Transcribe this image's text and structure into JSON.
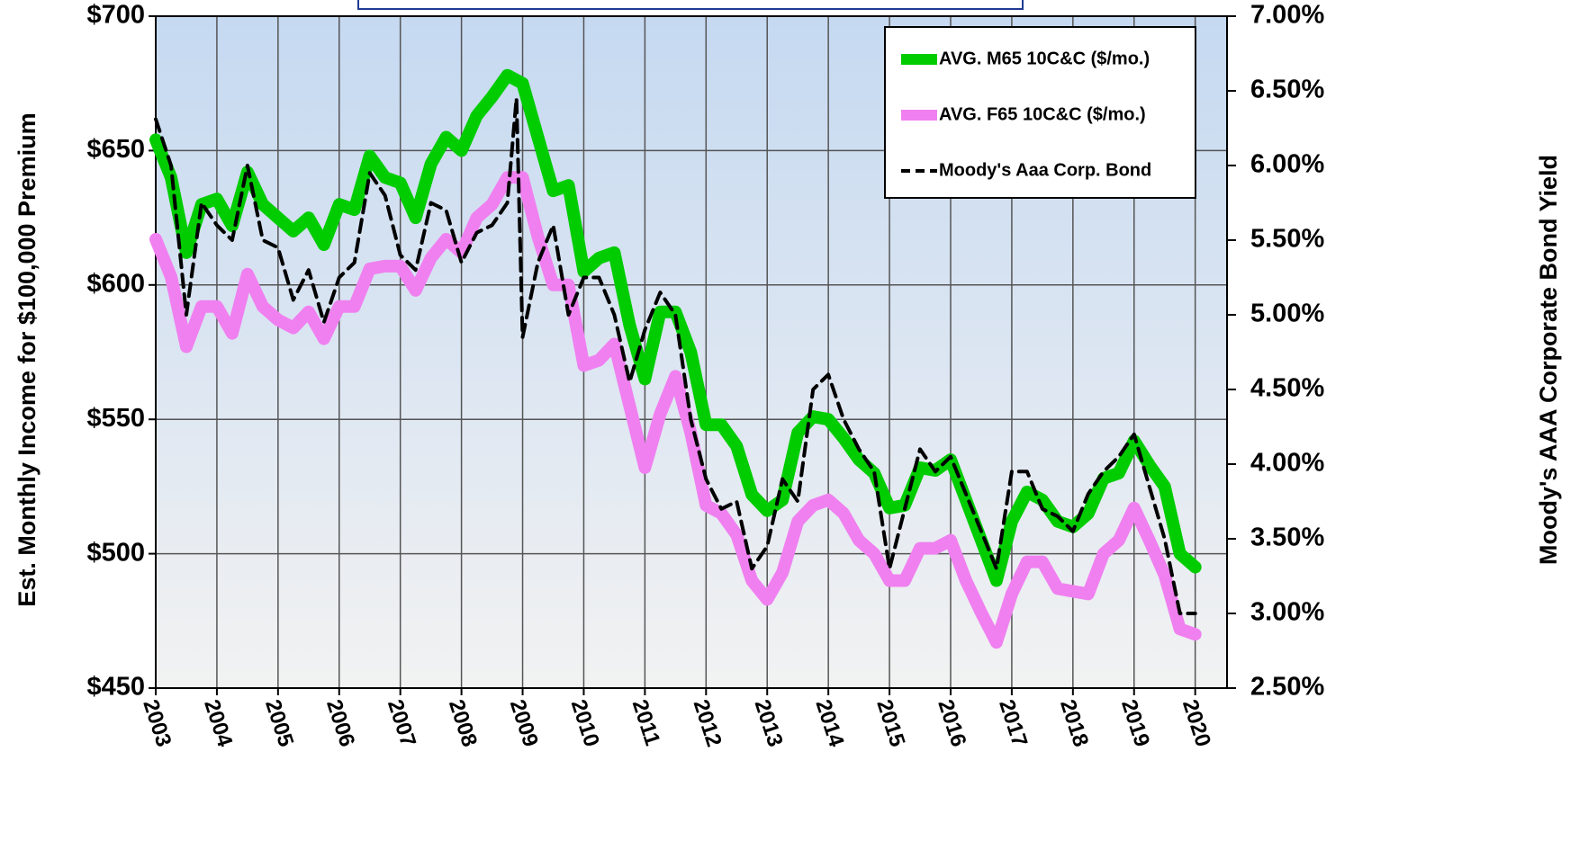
{
  "chart_data": {
    "type": "line",
    "y_label": "Est. Monthly Income for $100,000 Premium",
    "y2_label": "Moody's AAA Corporate Bond Yield",
    "xlim": [
      2003,
      2020.52
    ],
    "xticks": [
      2003,
      2004,
      2005,
      2006,
      2007,
      2008,
      2009,
      2010,
      2011,
      2012,
      2013,
      2014,
      2015,
      2016,
      2017,
      2018,
      2019,
      2020
    ],
    "ylim": [
      450,
      700
    ],
    "yticks": [
      {
        "value": 450,
        "label": "$450"
      },
      {
        "value": 500,
        "label": "$500"
      },
      {
        "value": 550,
        "label": "$550"
      },
      {
        "value": 600,
        "label": "$600"
      },
      {
        "value": 650,
        "label": "$650"
      },
      {
        "value": 700,
        "label": "$700"
      }
    ],
    "y2lim": [
      2.5,
      7.0
    ],
    "y2ticks": [
      {
        "value": 2.5,
        "label": "2.50%"
      },
      {
        "value": 3.0,
        "label": "3.00%"
      },
      {
        "value": 3.5,
        "label": "3.50%"
      },
      {
        "value": 4.0,
        "label": "4.00%"
      },
      {
        "value": 4.5,
        "label": "4.50%"
      },
      {
        "value": 5.0,
        "label": "5.00%"
      },
      {
        "value": 5.5,
        "label": "5.50%"
      },
      {
        "value": 6.0,
        "label": "6.00%"
      },
      {
        "value": 6.5,
        "label": "6.50%"
      },
      {
        "value": 7.0,
        "label": "7.00%"
      }
    ],
    "grid": true,
    "legend": "top-right",
    "series": [
      {
        "name": "AVG. M65 10C&C ($/mo.)",
        "color": "#00cc00",
        "line_style": "solid",
        "x": [
          2003,
          2003.25,
          2003.5,
          2003.75,
          2004,
          2004.25,
          2004.5,
          2004.75,
          2005,
          2005.25,
          2005.5,
          2005.75,
          2006,
          2006.25,
          2006.5,
          2006.75,
          2007,
          2007.25,
          2007.5,
          2007.75,
          2008,
          2008.25,
          2008.5,
          2008.75,
          2009,
          2009.25,
          2009.5,
          2009.75,
          2010,
          2010.25,
          2010.5,
          2010.75,
          2011,
          2011.25,
          2011.5,
          2011.75,
          2012,
          2012.25,
          2012.5,
          2012.75,
          2013,
          2013.25,
          2013.5,
          2013.75,
          2014,
          2014.25,
          2014.5,
          2014.75,
          2015,
          2015.25,
          2015.5,
          2015.75,
          2016,
          2016.25,
          2016.5,
          2016.75,
          2017,
          2017.25,
          2017.5,
          2017.75,
          2018,
          2018.25,
          2018.5,
          2018.75,
          2019,
          2019.25,
          2019.5,
          2019.75,
          2020
        ],
        "values": [
          654,
          640,
          612,
          630,
          632,
          622,
          642,
          630,
          625,
          620,
          625,
          615,
          630,
          628,
          648,
          640,
          638,
          625,
          645,
          655,
          650,
          663,
          670,
          678,
          675,
          655,
          635,
          637,
          605,
          610,
          612,
          585,
          565,
          590,
          590,
          575,
          548,
          548,
          540,
          522,
          516,
          520,
          545,
          551,
          550,
          543,
          535,
          530,
          517,
          518,
          532,
          531,
          535,
          520,
          505,
          490,
          512,
          523,
          520,
          512,
          510,
          515,
          528,
          530,
          542,
          533,
          525,
          500,
          495
        ]
      },
      {
        "name": "AVG. F65 10C&C ($/mo.)",
        "color": "#f080f0",
        "line_style": "solid",
        "x": [
          2003,
          2003.25,
          2003.5,
          2003.75,
          2004,
          2004.25,
          2004.5,
          2004.75,
          2005,
          2005.25,
          2005.5,
          2005.75,
          2006,
          2006.25,
          2006.5,
          2006.75,
          2007,
          2007.25,
          2007.5,
          2007.75,
          2008,
          2008.25,
          2008.5,
          2008.75,
          2009,
          2009.25,
          2009.5,
          2009.75,
          2010,
          2010.25,
          2010.5,
          2010.75,
          2011,
          2011.25,
          2011.5,
          2011.75,
          2012,
          2012.25,
          2012.5,
          2012.75,
          2013,
          2013.25,
          2013.5,
          2013.75,
          2014,
          2014.25,
          2014.5,
          2014.75,
          2015,
          2015.25,
          2015.5,
          2015.75,
          2016,
          2016.25,
          2016.5,
          2016.75,
          2017,
          2017.25,
          2017.5,
          2017.75,
          2018,
          2018.25,
          2018.5,
          2018.75,
          2019,
          2019.25,
          2019.5,
          2019.75,
          2020
        ],
        "values": [
          617,
          603,
          577,
          592,
          592,
          582,
          604,
          592,
          587,
          584,
          590,
          580,
          592,
          592,
          606,
          607,
          607,
          598,
          610,
          617,
          612,
          625,
          630,
          640,
          640,
          618,
          600,
          600,
          570,
          572,
          578,
          555,
          532,
          552,
          566,
          545,
          518,
          515,
          507,
          490,
          483,
          493,
          512,
          518,
          520,
          515,
          505,
          500,
          490,
          490,
          502,
          502,
          505,
          490,
          478,
          467,
          485,
          497,
          497,
          487,
          486,
          485,
          500,
          505,
          517,
          505,
          492,
          472,
          470
        ]
      },
      {
        "name": "Moody's Aaa Corp. Bond",
        "color": "#000000",
        "line_style": "dashed",
        "axis": "y2",
        "x": [
          2003,
          2003.25,
          2003.5,
          2003.75,
          2004,
          2004.25,
          2004.5,
          2004.75,
          2005,
          2005.25,
          2005.5,
          2005.75,
          2006,
          2006.25,
          2006.5,
          2006.75,
          2007,
          2007.25,
          2007.5,
          2007.75,
          2008,
          2008.25,
          2008.5,
          2008.75,
          2008.9,
          2009,
          2009.25,
          2009.5,
          2009.75,
          2010,
          2010.25,
          2010.5,
          2010.75,
          2011,
          2011.25,
          2011.5,
          2011.75,
          2012,
          2012.25,
          2012.5,
          2012.75,
          2013,
          2013.25,
          2013.5,
          2013.75,
          2014,
          2014.25,
          2014.5,
          2014.75,
          2015,
          2015.25,
          2015.5,
          2015.75,
          2016,
          2016.25,
          2016.5,
          2016.75,
          2017,
          2017.25,
          2017.5,
          2017.75,
          2018,
          2018.25,
          2018.5,
          2018.75,
          2019,
          2019.25,
          2019.5,
          2019.75,
          2020
        ],
        "values": [
          6.31,
          6.0,
          5.0,
          5.75,
          5.6,
          5.5,
          6.0,
          5.5,
          5.45,
          5.1,
          5.3,
          4.95,
          5.25,
          5.35,
          5.95,
          5.8,
          5.4,
          5.3,
          5.75,
          5.7,
          5.35,
          5.55,
          5.6,
          5.75,
          6.45,
          4.85,
          5.35,
          5.6,
          5.0,
          5.25,
          5.25,
          5.0,
          4.55,
          4.9,
          5.15,
          5.0,
          4.3,
          3.9,
          3.7,
          3.75,
          3.3,
          3.45,
          3.9,
          3.75,
          4.5,
          4.6,
          4.3,
          4.1,
          3.95,
          3.3,
          3.7,
          4.1,
          3.95,
          4.05,
          3.8,
          3.55,
          3.3,
          3.95,
          3.95,
          3.7,
          3.65,
          3.55,
          3.8,
          3.95,
          4.05,
          4.2,
          3.85,
          3.5,
          3.0,
          3.0
        ]
      }
    ]
  }
}
